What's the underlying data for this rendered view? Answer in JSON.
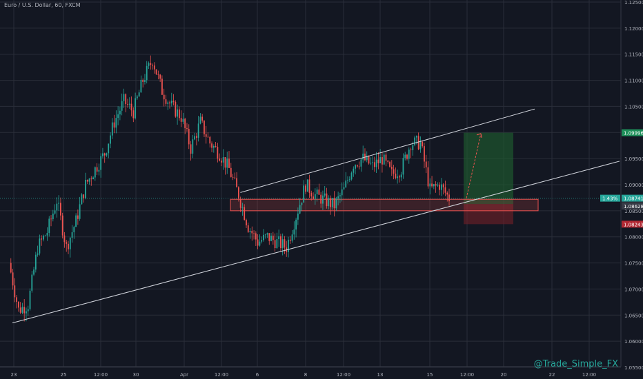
{
  "header": {
    "symbol_title": "Euro / U.S. Dollar, 60, FXCM"
  },
  "watermark": "@Trade_Simple_FX",
  "colors": {
    "bg": "#131722",
    "grid": "#2a2e39",
    "up": "#26a69a",
    "down": "#ef5350",
    "text": "#b2b5be",
    "line": "#d1d4dc"
  },
  "chart_data": {
    "type": "candlestick",
    "x_ticks": [
      "23",
      "25",
      "12:00",
      "30",
      "Apr",
      "12:00",
      "6",
      "8",
      "12:00",
      "13",
      "15",
      "12:00",
      "20",
      "22",
      "12:00"
    ],
    "y_ticks": [
      "1.12500",
      "1.12000",
      "1.11500",
      "1.11000",
      "1.10500",
      "1.10000",
      "1.09500",
      "1.09000",
      "1.08500",
      "1.08000",
      "1.07500",
      "1.07000",
      "1.06500",
      "1.06000",
      "1.05500"
    ],
    "ylim": [
      1.055,
      1.125
    ],
    "price_labels": {
      "target": "1.09996",
      "current_pct": "1.43%",
      "current": "1.08741",
      "timer": "48:00",
      "entry": "1.08628",
      "stop": "1.08243"
    },
    "price_path": [
      [
        0,
        1.075
      ],
      [
        1,
        1.066
      ],
      [
        2,
        1.067
      ],
      [
        3,
        1.078
      ],
      [
        4,
        1.081
      ],
      [
        5,
        1.087
      ],
      [
        6,
        1.078
      ],
      [
        7,
        1.083
      ],
      [
        8,
        1.09
      ],
      [
        9,
        1.093
      ],
      [
        10,
        1.096
      ],
      [
        11,
        1.102
      ],
      [
        12,
        1.106
      ],
      [
        13,
        1.104
      ],
      [
        14,
        1.11
      ],
      [
        15,
        1.114
      ],
      [
        16,
        1.108
      ],
      [
        17,
        1.105
      ],
      [
        18,
        1.103
      ],
      [
        19,
        1.097
      ],
      [
        20,
        1.102
      ],
      [
        21,
        1.098
      ],
      [
        22,
        1.096
      ],
      [
        23,
        1.093
      ],
      [
        24,
        1.088
      ],
      [
        25,
        1.082
      ],
      [
        26,
        1.079
      ],
      [
        27,
        1.08
      ],
      [
        28,
        1.079
      ],
      [
        29,
        1.078
      ],
      [
        30,
        1.084
      ],
      [
        31,
        1.09
      ],
      [
        32,
        1.088
      ],
      [
        33,
        1.087
      ],
      [
        34,
        1.086
      ],
      [
        35,
        1.089
      ],
      [
        36,
        1.094
      ],
      [
        37,
        1.095
      ],
      [
        38,
        1.0935
      ],
      [
        39,
        1.095
      ],
      [
        40,
        1.092
      ],
      [
        41,
        1.093
      ],
      [
        42,
        1.098
      ],
      [
        43,
        1.098
      ],
      [
        44,
        1.089
      ],
      [
        45,
        1.09
      ],
      [
        46,
        1.0874
      ]
    ],
    "channel": {
      "lower": [
        [
          0,
          1.0635
        ],
        [
          57,
          1.0945
        ]
      ],
      "upper": [
        [
          20,
          1.0885
        ],
        [
          48,
          1.1045
        ]
      ]
    },
    "support_zone": [
      1.085,
      1.0872
    ],
    "trade": {
      "entry": 1.08628,
      "target": 1.09996,
      "stop": 1.08243
    }
  }
}
